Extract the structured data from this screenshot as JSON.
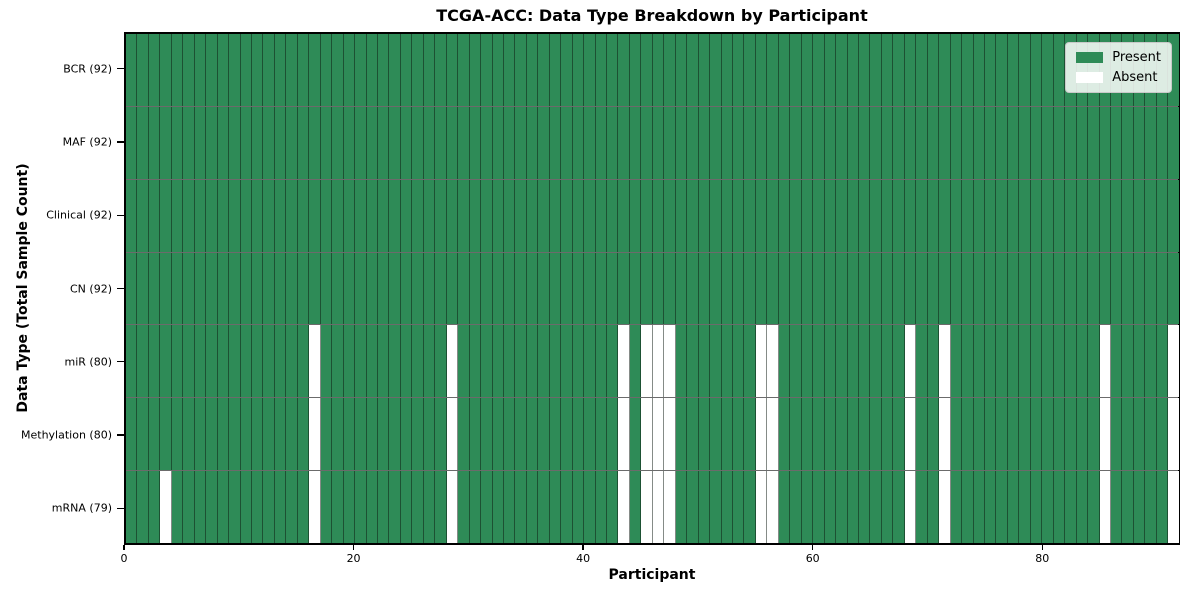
{
  "title": "TCGA-ACC: Data Type Breakdown by Participant",
  "axes": {
    "xlabel": "Participant",
    "ylabel": "Data Type (Total Sample Count)"
  },
  "legend": {
    "items": [
      {
        "label": "Present",
        "color": "#2e8b57"
      },
      {
        "label": "Absent",
        "color": "#ffffff"
      }
    ]
  },
  "colors": {
    "present": "#2e8b57",
    "absent": "#ffffff"
  },
  "chart_data": {
    "type": "heatmap",
    "title": "TCGA-ACC: Data Type Breakdown by Participant",
    "xlabel": "Participant",
    "ylabel": "Data Type (Total Sample Count)",
    "legend_position": "upper right",
    "legend_entries": [
      "Present",
      "Absent"
    ],
    "n_participants": 92,
    "x_ticks": [
      0,
      20,
      40,
      60,
      80
    ],
    "rows": [
      {
        "label": "BCR (92)",
        "data_type": "BCR",
        "present_count": 92,
        "absent_participants": []
      },
      {
        "label": "MAF (92)",
        "data_type": "MAF",
        "present_count": 92,
        "absent_participants": []
      },
      {
        "label": "Clinical (92)",
        "data_type": "Clinical",
        "present_count": 92,
        "absent_participants": []
      },
      {
        "label": "CN (92)",
        "data_type": "CN",
        "present_count": 92,
        "absent_participants": []
      },
      {
        "label": "miR (80)",
        "data_type": "miR",
        "present_count": 80,
        "absent_participants": [
          16,
          28,
          43,
          45,
          46,
          47,
          55,
          56,
          68,
          71,
          85,
          91
        ]
      },
      {
        "label": "Methylation (80)",
        "data_type": "Methylation",
        "present_count": 80,
        "absent_participants": [
          16,
          28,
          43,
          45,
          46,
          47,
          55,
          56,
          68,
          71,
          85,
          91
        ]
      },
      {
        "label": "mRNA (79)",
        "data_type": "mRNA",
        "present_count": 79,
        "absent_participants": [
          3,
          16,
          28,
          43,
          45,
          46,
          47,
          55,
          56,
          68,
          71,
          85,
          91
        ]
      }
    ]
  }
}
